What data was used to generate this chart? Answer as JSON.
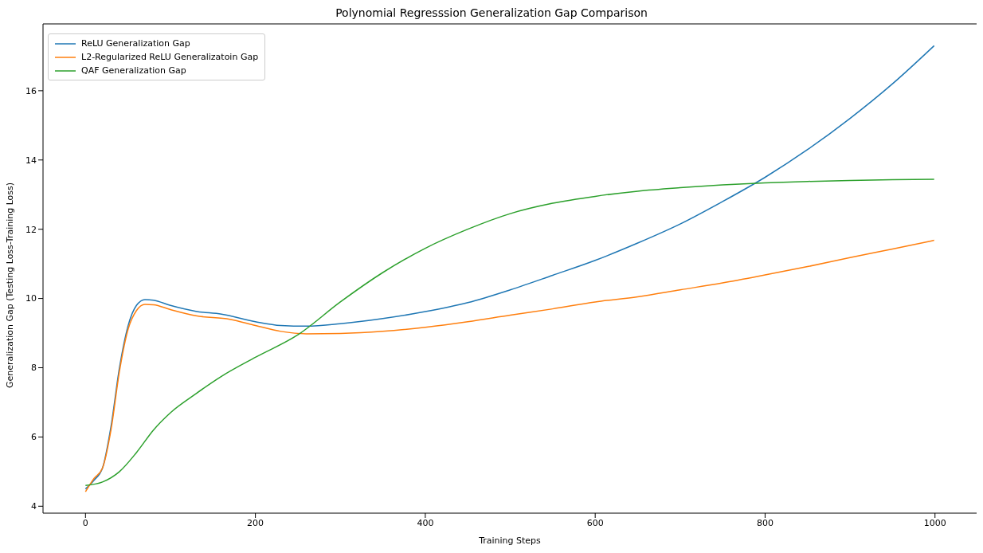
{
  "chart_data": {
    "type": "line",
    "title": "Polynomial Regresssion Generalization Gap Comparison",
    "xlabel": "Training Steps",
    "ylabel": "Generalization Gap (Testing Loss-Training Loss)",
    "xlim": [
      -50,
      1049
    ],
    "ylim": [
      3.8,
      17.93
    ],
    "xticks": [
      0,
      200,
      400,
      600,
      800,
      1000
    ],
    "yticks": [
      4,
      6,
      8,
      10,
      12,
      14,
      16
    ],
    "legend": "top left",
    "marker": "none",
    "line_style": "solid",
    "series": [
      {
        "name": "ReLU Generalization Gap",
        "color": "#1f77b4",
        "x": [
          0,
          10,
          20,
          30,
          40,
          50,
          60,
          70,
          80,
          100,
          130,
          160,
          200,
          230,
          260,
          300,
          350,
          400,
          450,
          500,
          550,
          600,
          650,
          700,
          750,
          800,
          850,
          900,
          950,
          999
        ],
        "values": [
          4.5,
          4.75,
          5.1,
          6.3,
          8.0,
          9.2,
          9.8,
          9.97,
          9.95,
          9.8,
          9.63,
          9.55,
          9.33,
          9.22,
          9.2,
          9.27,
          9.42,
          9.62,
          9.88,
          10.25,
          10.67,
          11.1,
          11.6,
          12.15,
          12.8,
          13.5,
          14.3,
          15.2,
          16.2,
          17.3
        ]
      },
      {
        "name": "L2-Regularized ReLU Generalizatoin Gap",
        "color": "#ff7f0e",
        "x": [
          0,
          10,
          20,
          30,
          40,
          50,
          60,
          70,
          80,
          100,
          130,
          170,
          200,
          230,
          260,
          300,
          350,
          400,
          450,
          500,
          550,
          600,
          650,
          700,
          750,
          800,
          850,
          900,
          950,
          999
        ],
        "values": [
          4.42,
          4.8,
          5.1,
          6.2,
          7.9,
          9.1,
          9.65,
          9.83,
          9.82,
          9.68,
          9.5,
          9.4,
          9.22,
          9.05,
          8.98,
          8.99,
          9.05,
          9.17,
          9.33,
          9.52,
          9.7,
          9.9,
          10.05,
          10.25,
          10.45,
          10.68,
          10.92,
          11.18,
          11.43,
          11.68
        ]
      },
      {
        "name": "QAF Generalization Gap",
        "color": "#2ca02c",
        "x": [
          0,
          20,
          40,
          60,
          80,
          100,
          130,
          160,
          200,
          250,
          300,
          350,
          400,
          450,
          500,
          550,
          600,
          650,
          700,
          750,
          800,
          850,
          900,
          950,
          999
        ],
        "values": [
          4.6,
          4.7,
          5.0,
          5.55,
          6.2,
          6.7,
          7.25,
          7.75,
          8.3,
          8.95,
          9.9,
          10.75,
          11.45,
          12.0,
          12.45,
          12.75,
          12.95,
          13.1,
          13.2,
          13.28,
          13.34,
          13.38,
          13.41,
          13.43,
          13.44
        ]
      }
    ]
  }
}
